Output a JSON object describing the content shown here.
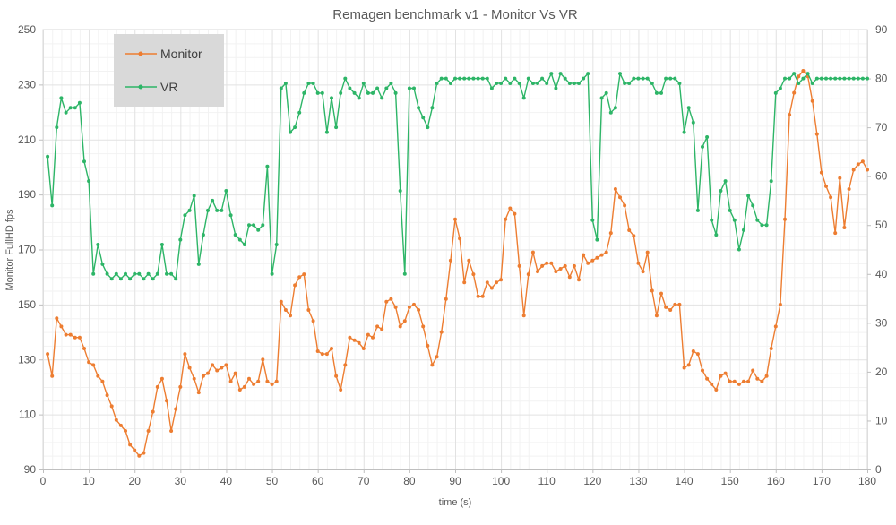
{
  "chart": {
    "title": "Remagen benchmark v1 - Monitor Vs VR",
    "legend": {
      "items": [
        {
          "label": "Monitor",
          "color": "#ED7D31"
        },
        {
          "label": "VR",
          "color": "#2DB567"
        }
      ]
    }
  },
  "colors": {
    "monitor": "#ED7D31",
    "vr": "#2DB567",
    "tick_text": "#595959",
    "grid_major": "#e2e2e2",
    "grid_minor": "#f2f2f2",
    "axis_line": "#bfbfbf",
    "plot_border": "#d9d9d9",
    "legend_bg": "#d9d9d9"
  },
  "chart_data": {
    "type": "line",
    "title": "Remagen benchmark v1 - Monitor Vs VR",
    "x_start": 1,
    "x_step": 1,
    "x_axis": {
      "label": "time (s)",
      "min": 0,
      "max": 180,
      "ticks": [
        0,
        10,
        20,
        30,
        40,
        50,
        60,
        70,
        80,
        90,
        100,
        110,
        120,
        130,
        140,
        150,
        160,
        170,
        180
      ],
      "minor_step": 2
    },
    "left_axis": {
      "label": "Monitor FullHD fps",
      "min": 90,
      "max": 250,
      "ticks": [
        90,
        110,
        130,
        150,
        170,
        190,
        210,
        230,
        250
      ],
      "minor_step": 5
    },
    "right_axis": {
      "label": "",
      "min": 0,
      "max": 90,
      "ticks": [
        0,
        10,
        20,
        30,
        40,
        50,
        60,
        70,
        80,
        90
      ]
    },
    "grid": true,
    "legend_position": "top-left",
    "series": [
      {
        "name": "Monitor",
        "axis": "left",
        "color": "#ED7D31",
        "values": [
          132,
          124,
          145,
          142,
          139,
          139,
          138,
          138,
          134,
          129,
          128,
          124,
          122,
          117,
          113,
          108,
          106,
          104,
          99,
          97,
          95,
          96,
          104,
          111,
          120,
          123,
          115,
          104,
          112,
          120,
          132,
          127,
          123,
          118,
          124,
          125,
          128,
          126,
          127,
          128,
          122,
          125,
          119,
          120,
          123,
          121,
          122,
          130,
          122,
          121,
          122,
          151,
          148,
          146,
          157,
          160,
          161,
          148,
          144,
          133,
          132,
          132,
          134,
          124,
          119,
          128,
          138,
          137,
          136,
          134,
          139,
          138,
          142,
          141,
          151,
          152,
          149,
          142,
          144,
          149,
          150,
          148,
          142,
          135,
          128,
          131,
          140,
          152,
          166,
          181,
          174,
          158,
          166,
          161,
          153,
          153,
          158,
          156,
          158,
          159,
          181,
          185,
          183,
          164,
          146,
          161,
          169,
          162,
          164,
          165,
          165,
          162,
          163,
          164,
          160,
          164,
          159,
          168,
          165,
          166,
          167,
          168,
          169,
          176,
          192,
          189,
          186,
          177,
          175,
          165,
          162,
          169,
          155,
          146,
          154,
          149,
          148,
          150,
          150,
          127,
          128,
          133,
          132,
          126,
          123,
          121,
          119,
          124,
          125,
          122,
          122,
          121,
          122,
          122,
          126,
          123,
          122,
          124,
          134,
          142,
          150,
          181,
          219,
          227,
          233,
          235,
          233,
          224,
          212,
          198,
          193,
          189,
          176,
          196,
          178,
          192,
          199,
          201,
          202,
          199
        ]
      },
      {
        "name": "VR",
        "axis": "right",
        "color": "#2DB567",
        "values": [
          64,
          54,
          70,
          76,
          73,
          74,
          74,
          75,
          63,
          59,
          40,
          46,
          42,
          40,
          39,
          40,
          39,
          40,
          39,
          40,
          40,
          39,
          40,
          39,
          40,
          46,
          40,
          40,
          39,
          47,
          52,
          53,
          56,
          42,
          48,
          53,
          55,
          53,
          53,
          57,
          52,
          48,
          47,
          46,
          50,
          50,
          49,
          50,
          62,
          40,
          46,
          78,
          79,
          69,
          70,
          73,
          77,
          79,
          79,
          77,
          77,
          69,
          76,
          70,
          77,
          80,
          78,
          77,
          76,
          79,
          77,
          77,
          78,
          76,
          78,
          79,
          77,
          57,
          40,
          78,
          78,
          74,
          72,
          70,
          74,
          79,
          80,
          80,
          79,
          80,
          80,
          80,
          80,
          80,
          80,
          80,
          80,
          78,
          79,
          79,
          80,
          79,
          80,
          79,
          76,
          80,
          79,
          79,
          80,
          79,
          81,
          78,
          81,
          80,
          79,
          79,
          79,
          80,
          81,
          51,
          47,
          76,
          77,
          73,
          74,
          81,
          79,
          79,
          80,
          80,
          80,
          80,
          79,
          77,
          77,
          80,
          80,
          80,
          79,
          69,
          74,
          71,
          53,
          66,
          68,
          51,
          48,
          57,
          59,
          53,
          51,
          45,
          49,
          56,
          54,
          51,
          50,
          50,
          59,
          77,
          78,
          80,
          80,
          81,
          79,
          80,
          81,
          79,
          80,
          80,
          80,
          80,
          80,
          80,
          80,
          80,
          80,
          80,
          80,
          80
        ]
      }
    ]
  }
}
